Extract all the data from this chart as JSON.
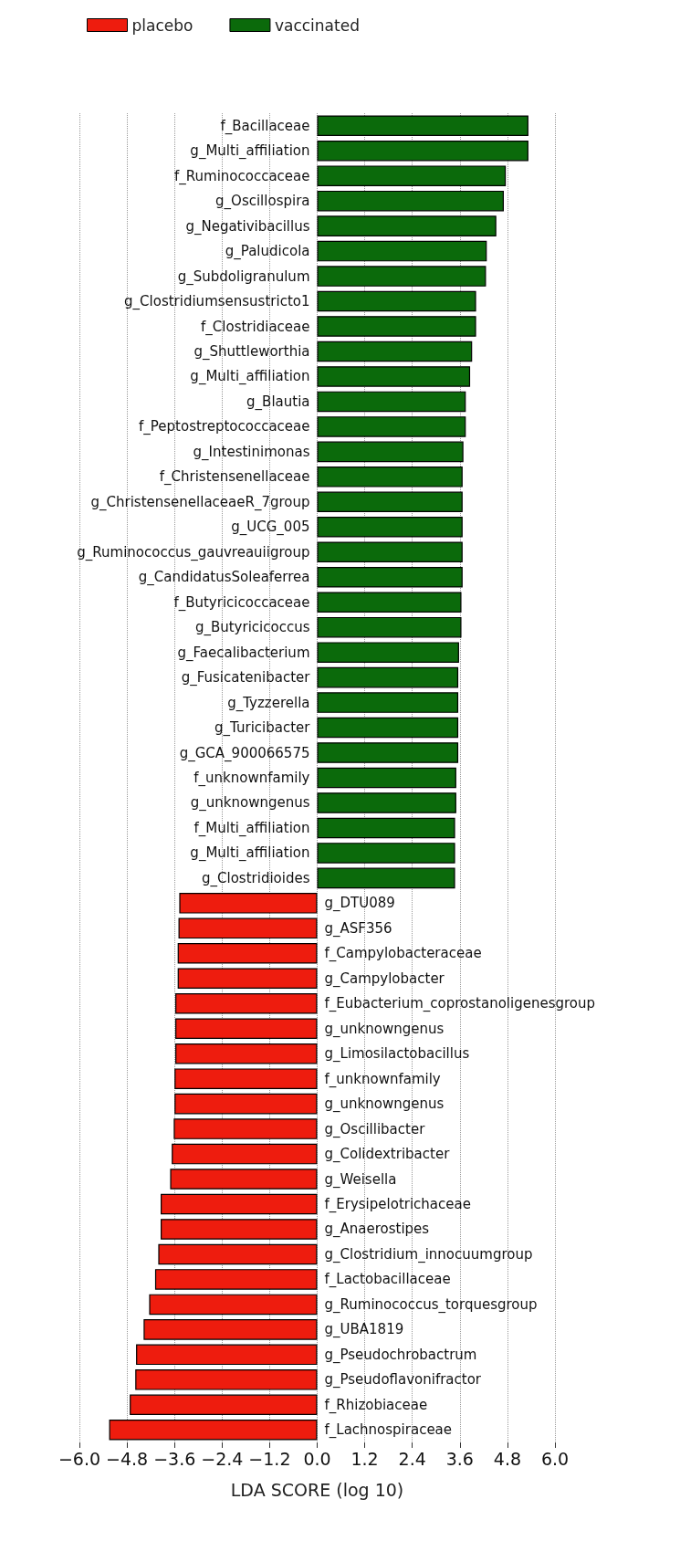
{
  "chart_data": {
    "type": "bar",
    "orientation": "horizontal",
    "xlabel": "LDA SCORE (log 10)",
    "legend": "top left",
    "grid": "x",
    "categories": [
      "f_Bacillaceae",
      "g_Multi_affiliation",
      "f_Ruminococcaceae",
      "g_Oscillospira",
      "g_Negativibacillus",
      "g_Paludicola",
      "g_Subdoligranulum",
      "g_Clostridiumsensustricto1",
      "f_Clostridiaceae",
      "g_Shuttleworthia",
      "g_Multi_affiliation",
      "g_Blautia",
      "f_Peptostreptococcaceae",
      "g_Intestinimonas",
      "f_Christensenellaceae",
      "g_ChristensenellaceaeR_7group",
      "g_UCG_005",
      "g_Ruminococcus_gauvreauiigroup",
      "g_CandidatusSoleaferrea",
      "f_Butyricicoccaceae",
      "g_Butyricicoccus",
      "g_Faecalibacterium",
      "g_Fusicatenibacter",
      "g_Tyzzerella",
      "g_Turicibacter",
      "g_GCA_900066575",
      "f_unknownfamily",
      "g_unknowngenus",
      "f_Multi_affiliation",
      "g_Multi_affiliation",
      "g_Clostridioides",
      "g_DTU089",
      "g_ASF356",
      "f_Campylobacteraceae",
      "g_Campylobacter",
      "f_Eubacterium_coprostanoligenesgroup",
      "g_unknowngenus",
      "g_Limosilactobacillus",
      "f_unknownfamily",
      "g_unknowngenus",
      "g_Oscillibacter",
      "g_Colidextribacter",
      "g_Weisella",
      "f_Erysipelotrichaceae",
      "g_Anaerostipes",
      "g_Clostridium_innocuumgroup",
      "f_Lactobacillaceae",
      "g_Ruminococcus_torquesgroup",
      "g_UBA1819",
      "g_Pseudochrobactrum",
      "g_Pseudoflavonifractor",
      "f_Rhizobiaceae",
      "f_Lachnospiraceae"
    ],
    "series": [
      {
        "name": "placebo",
        "color": "#ee1c0e",
        "values": [
          null,
          null,
          null,
          null,
          null,
          null,
          null,
          null,
          null,
          null,
          null,
          null,
          null,
          null,
          null,
          null,
          null,
          null,
          null,
          null,
          null,
          null,
          null,
          null,
          null,
          null,
          null,
          null,
          null,
          null,
          null,
          -3.48,
          -3.5,
          -3.52,
          -3.52,
          -3.58,
          -3.58,
          -3.58,
          -3.6,
          -3.6,
          -3.62,
          -3.67,
          -3.71,
          -3.95,
          -3.95,
          -4.01,
          -4.09,
          -4.24,
          -4.38,
          -4.57,
          -4.59,
          -4.73,
          -5.25
        ]
      },
      {
        "name": "vaccinated",
        "color": "#0b6a0b",
        "values": [
          5.33,
          5.33,
          4.76,
          4.71,
          4.52,
          4.28,
          4.26,
          4.01,
          4.01,
          3.91,
          3.86,
          3.75,
          3.75,
          3.69,
          3.67,
          3.67,
          3.67,
          3.67,
          3.67,
          3.64,
          3.64,
          3.58,
          3.56,
          3.56,
          3.56,
          3.56,
          3.51,
          3.51,
          3.48,
          3.48,
          3.48,
          null,
          null,
          null,
          null,
          null,
          null,
          null,
          null,
          null,
          null,
          null,
          null,
          null,
          null,
          null,
          null,
          null,
          null,
          null,
          null,
          null,
          null
        ]
      }
    ],
    "xlim": [
      -6,
      6
    ],
    "xticks": [
      {
        "value": -6,
        "label": "−6.0"
      },
      {
        "value": -4.8,
        "label": "−4.8"
      },
      {
        "value": -3.6,
        "label": "−3.6"
      },
      {
        "value": -2.4,
        "label": "−2.4"
      },
      {
        "value": -1.2,
        "label": "−1.2"
      },
      {
        "value": 0,
        "label": "0.0"
      },
      {
        "value": 1.2,
        "label": "1.2"
      },
      {
        "value": 2.4,
        "label": "2.4"
      },
      {
        "value": 3.6,
        "label": "3.6"
      },
      {
        "value": 4.8,
        "label": "4.8"
      },
      {
        "value": 6,
        "label": "6.0"
      }
    ]
  }
}
